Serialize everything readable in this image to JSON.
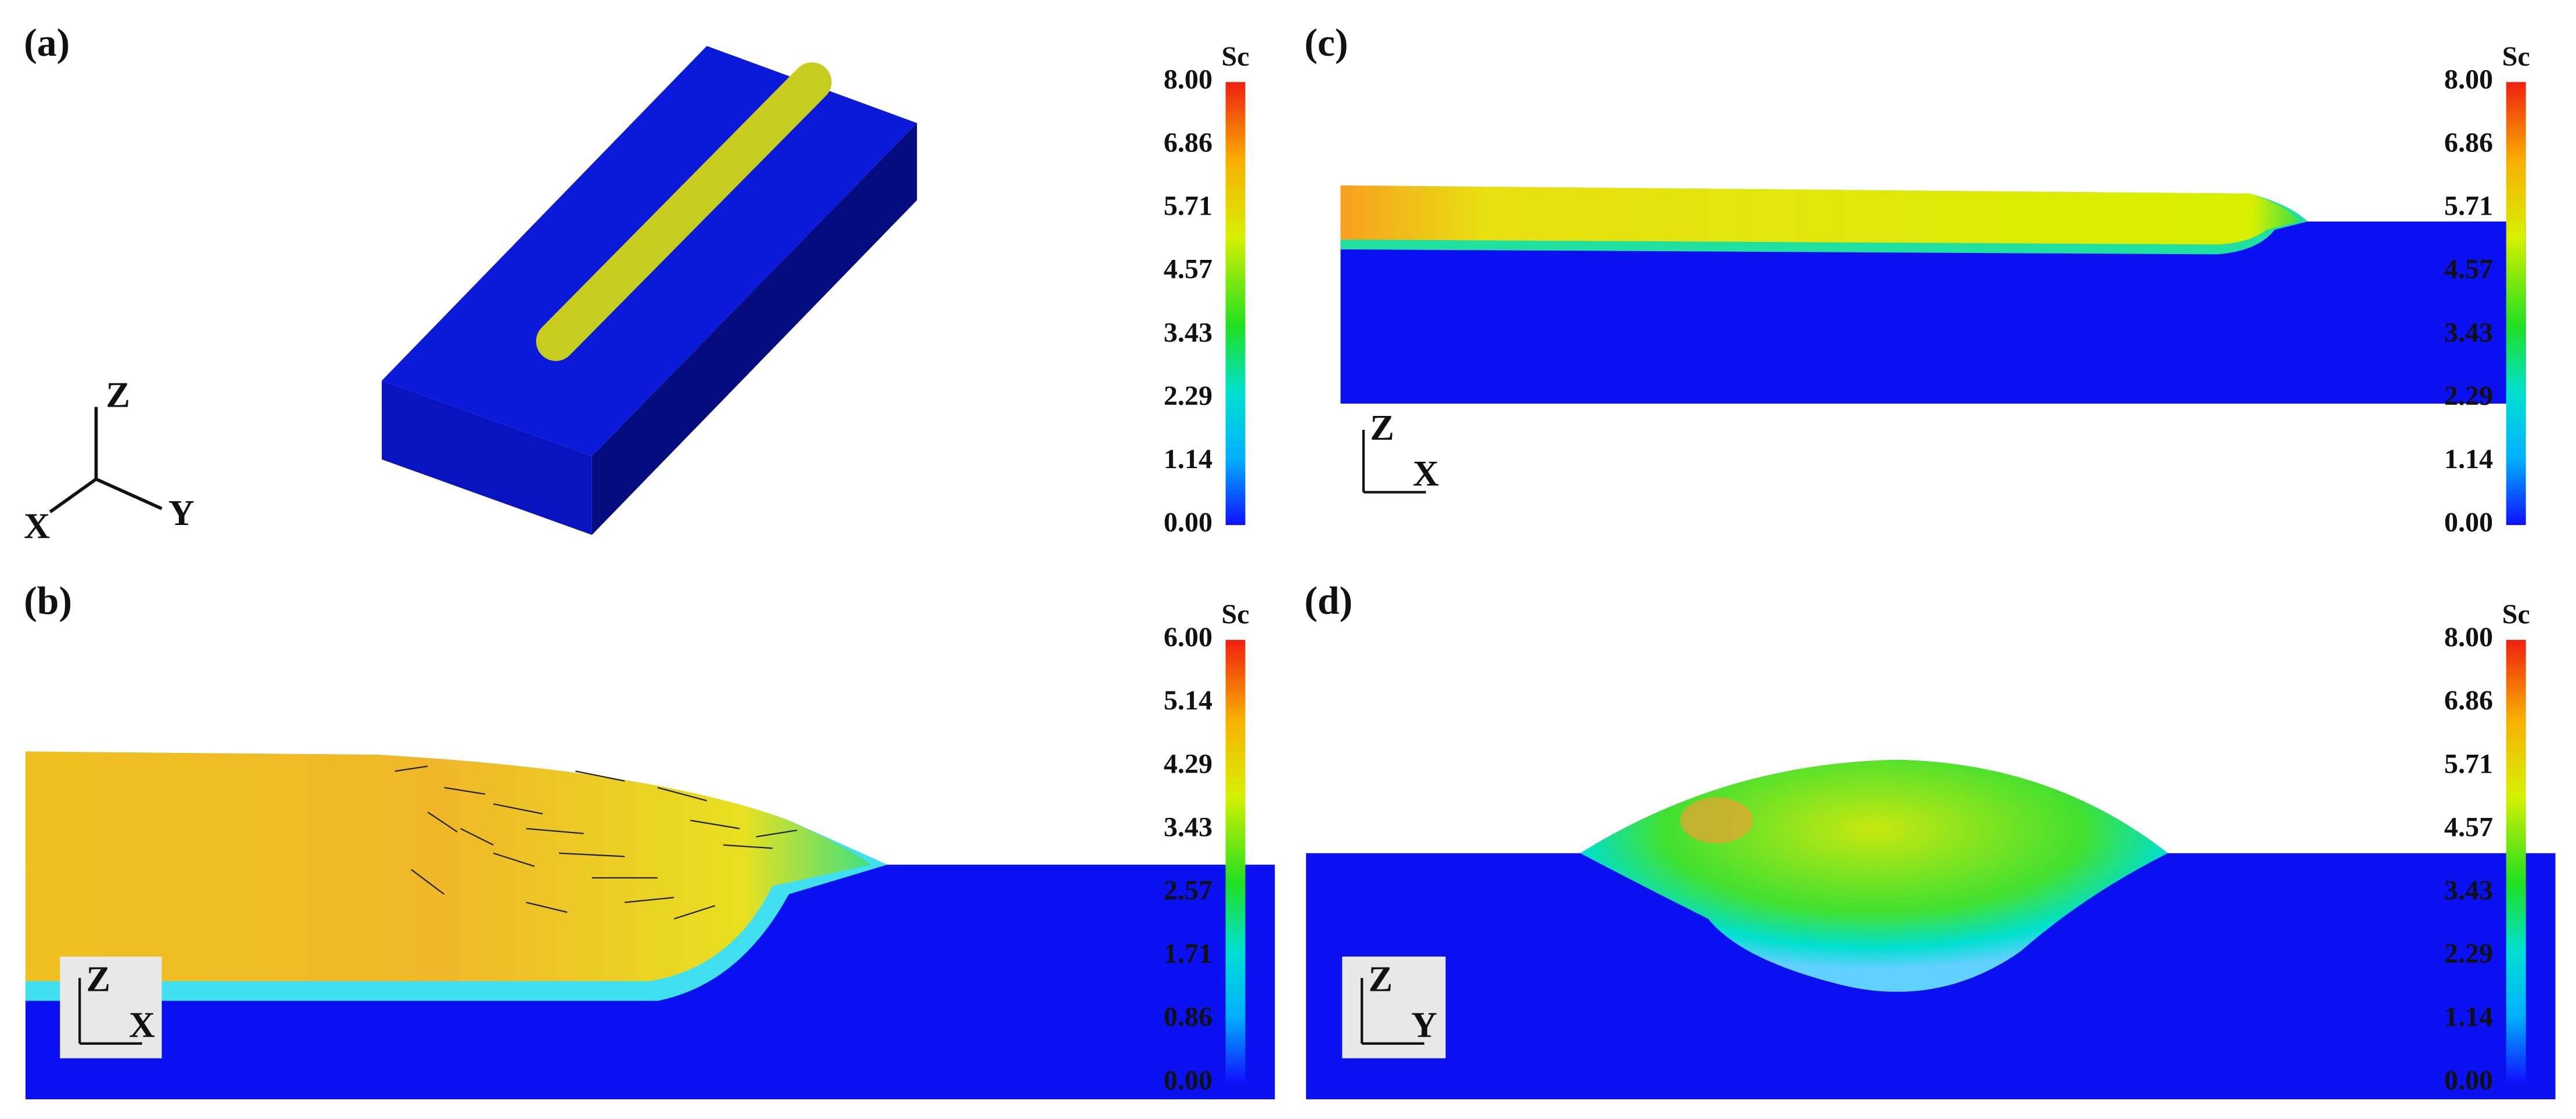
{
  "panels": [
    {
      "label": "(a)",
      "axes": {
        "z": "Z",
        "x": "X",
        "y": "Y"
      },
      "colorbar": {
        "title": "Sc",
        "ticks": [
          "8.00",
          "6.86",
          "5.71",
          "4.57",
          "3.43",
          "2.29",
          "1.14",
          "0.00"
        ]
      }
    },
    {
      "label": "(b)",
      "axes": {
        "z": "Z",
        "h": "X"
      },
      "colorbar": {
        "title": "Sc",
        "ticks": [
          "6.00",
          "5.14",
          "4.29",
          "3.43",
          "2.57",
          "1.71",
          "0.86",
          "0.00"
        ]
      }
    },
    {
      "label": "(c)",
      "axes": {
        "z": "Z",
        "h": "X"
      },
      "colorbar": {
        "title": "Sc",
        "ticks": [
          "8.00",
          "6.86",
          "5.71",
          "4.57",
          "3.43",
          "2.29",
          "1.14",
          "0.00"
        ]
      }
    },
    {
      "label": "(d)",
      "axes": {
        "z": "Z",
        "h": "Y"
      },
      "colorbar": {
        "title": "Sc",
        "ticks": [
          "8.00",
          "6.86",
          "5.71",
          "4.57",
          "3.43",
          "2.29",
          "1.14",
          "0.00"
        ]
      }
    }
  ]
}
